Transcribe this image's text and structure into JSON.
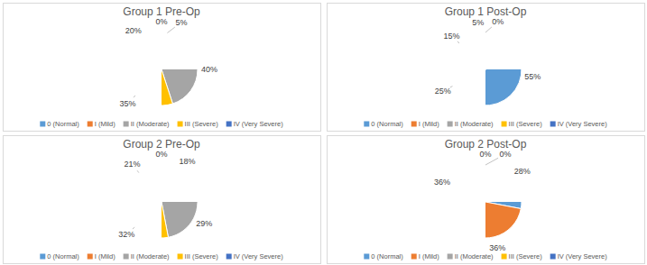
{
  "chart_data": [
    {
      "type": "pie",
      "title": "Group 1 Pre-Op",
      "categories": [
        "0 (Normal)",
        "I (Mild)",
        "II (Moderate)",
        "III (Severe)",
        "IV (Very Severe)"
      ],
      "values": [
        0,
        5,
        40,
        35,
        20
      ],
      "value_labels": [
        "0%",
        "5%",
        "40%",
        "35%",
        "20%"
      ],
      "colors": [
        "#5b9bd5",
        "#ed7d31",
        "#a5a5a5",
        "#ffc000",
        "#4472c4"
      ],
      "data_labels": true,
      "legend": "bottom"
    },
    {
      "type": "pie",
      "title": "Group 1 Post-Op",
      "categories": [
        "0 (Normal)",
        "I (Mild)",
        "II (Moderate)",
        "III (Severe)",
        "IV (Very Severe)"
      ],
      "values": [
        55,
        25,
        15,
        5,
        0
      ],
      "value_labels": [
        "55%",
        "25%",
        "15%",
        "5%",
        "0%"
      ],
      "colors": [
        "#5b9bd5",
        "#ed7d31",
        "#a5a5a5",
        "#ffc000",
        "#4472c4"
      ],
      "data_labels": true,
      "legend": "bottom"
    },
    {
      "type": "pie",
      "title": "Group 2 Pre-Op",
      "categories": [
        "0 (Normal)",
        "I (Mild)",
        "II (Moderate)",
        "III (Severe)",
        "IV (Very Severe)"
      ],
      "values": [
        0,
        18,
        29,
        32,
        21
      ],
      "value_labels": [
        "0%",
        "18%",
        "29%",
        "32%",
        "21%"
      ],
      "colors": [
        "#5b9bd5",
        "#ed7d31",
        "#a5a5a5",
        "#ffc000",
        "#4472c4"
      ],
      "data_labels": true,
      "legend": "bottom"
    },
    {
      "type": "pie",
      "title": "Group 2 Post-Op",
      "categories": [
        "0 (Normal)",
        "I (Mild)",
        "II (Moderate)",
        "III (Severe)",
        "IV (Very Severe)"
      ],
      "values": [
        28,
        36,
        36,
        0,
        0
      ],
      "value_labels": [
        "28%",
        "36%",
        "36%",
        "0%",
        "0%"
      ],
      "colors": [
        "#5b9bd5",
        "#ed7d31",
        "#a5a5a5",
        "#ffc000",
        "#4472c4"
      ],
      "data_labels": true,
      "legend": "bottom"
    }
  ]
}
